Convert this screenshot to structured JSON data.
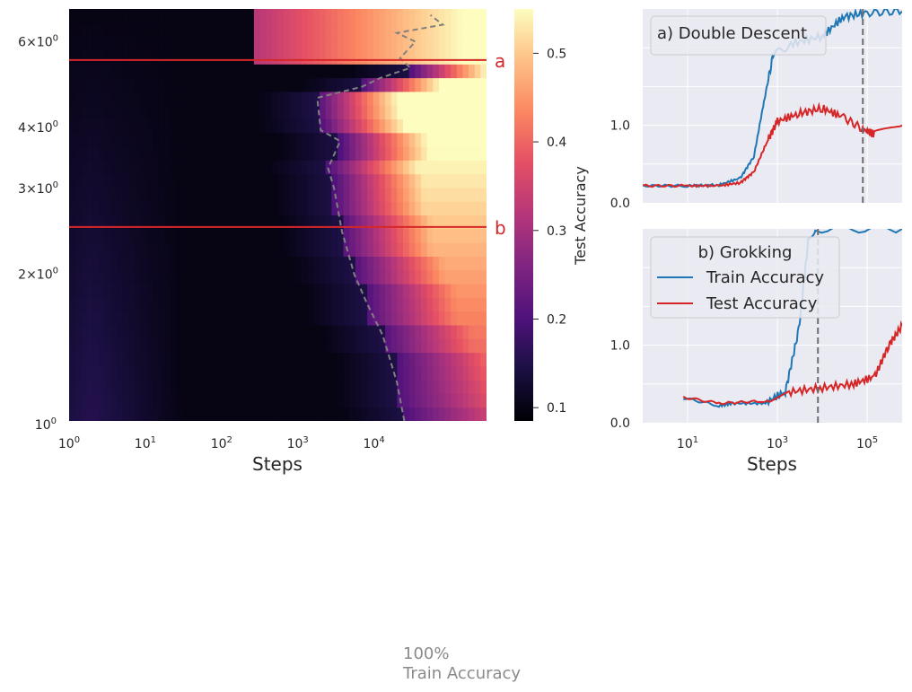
{
  "chart_data": [
    {
      "type": "heatmap",
      "xlabel": "Steps",
      "ylabel": "",
      "x_scale": "log",
      "y_scale": "log",
      "x_ticks": [
        "10^0",
        "10^1",
        "10^2",
        "10^3",
        "10^4"
      ],
      "y_ticks": [
        "10^0",
        "2×10^0",
        "3×10^0",
        "4×10^0",
        "6×10^0"
      ],
      "xlim": [
        1,
        300000
      ],
      "ylim": [
        1,
        7
      ],
      "colorbar": {
        "label": "Test Accuracy",
        "ticks": [
          "0.1",
          "0.2",
          "0.3",
          "0.4",
          "0.5"
        ],
        "range": [
          0.085,
          0.55
        ],
        "colormap": "magma"
      },
      "hlines": [
        {
          "label": "a",
          "y": 5.5,
          "color": "#d62728"
        },
        {
          "label": "b",
          "y": 2.5,
          "color": "#d62728"
        }
      ],
      "boundary_curve": {
        "style": "dashed",
        "color": "#808080",
        "points": [
          [
            25000,
            1.0
          ],
          [
            20000,
            1.2
          ],
          [
            13000,
            1.5
          ],
          [
            8000,
            1.75
          ],
          [
            5500,
            2.0
          ],
          [
            3800,
            2.45
          ],
          [
            3000,
            3.0
          ],
          [
            2500,
            3.3
          ],
          [
            3600,
            3.75
          ],
          [
            2000,
            3.95
          ],
          [
            1800,
            4.6
          ],
          [
            7000,
            4.85
          ],
          [
            12000,
            5.05
          ],
          [
            30000,
            5.3
          ],
          [
            22000,
            5.55
          ],
          [
            35000,
            6.0
          ],
          [
            20000,
            6.25
          ],
          [
            80000,
            6.5
          ],
          [
            55000,
            6.8
          ]
        ]
      }
    },
    {
      "type": "line",
      "title": "a) Double Descent",
      "x_scale": "log",
      "xlim": [
        1,
        600000
      ],
      "y_ticks": [
        "0.0",
        "1.0"
      ],
      "ylim": [
        0,
        2.5
      ],
      "series": [
        {
          "name": "Train Accuracy",
          "color": "#1f77b4",
          "points": [
            [
              1,
              0.22
            ],
            [
              10,
              0.22
            ],
            [
              50,
              0.23
            ],
            [
              150,
              0.32
            ],
            [
              300,
              0.6
            ],
            [
              500,
              1.3
            ],
            [
              800,
              1.9
            ],
            [
              2000,
              2.05
            ],
            [
              10000,
              2.15
            ],
            [
              30000,
              2.4
            ],
            [
              100000,
              2.45
            ],
            [
              600000,
              2.47
            ]
          ]
        },
        {
          "name": "Test Accuracy",
          "color": "#d62728",
          "points": [
            [
              1,
              0.22
            ],
            [
              10,
              0.22
            ],
            [
              50,
              0.22
            ],
            [
              150,
              0.26
            ],
            [
              300,
              0.4
            ],
            [
              600,
              0.8
            ],
            [
              1000,
              1.05
            ],
            [
              3000,
              1.15
            ],
            [
              10000,
              1.22
            ],
            [
              30000,
              1.1
            ],
            [
              80000,
              0.95
            ],
            [
              150000,
              0.88
            ],
            [
              600000,
              1.0
            ]
          ]
        }
      ],
      "vline": {
        "x": 80000,
        "style": "dashed"
      }
    },
    {
      "type": "line",
      "title": "b) Grokking",
      "xlabel": "Steps",
      "x_scale": "log",
      "x_ticks": [
        "10^1",
        "10^3",
        "10^5"
      ],
      "xlim": [
        1,
        600000
      ],
      "y_ticks": [
        "0.0",
        "1.0"
      ],
      "ylim": [
        0,
        2.5
      ],
      "legend": {
        "placement": "upper-left",
        "entries": [
          "Train Accuracy",
          "Test Accuracy"
        ]
      },
      "series": [
        {
          "name": "Train Accuracy",
          "color": "#1f77b4",
          "points": [
            [
              8,
              0.32
            ],
            [
              50,
              0.22
            ],
            [
              100,
              0.25
            ],
            [
              500,
              0.25
            ],
            [
              1500,
              0.4
            ],
            [
              3000,
              1.2
            ],
            [
              5000,
              2.4
            ],
            [
              7000,
              2.5
            ],
            [
              600000,
              2.5
            ]
          ]
        },
        {
          "name": "Test Accuracy",
          "color": "#d62728",
          "points": [
            [
              8,
              0.33
            ],
            [
              50,
              0.25
            ],
            [
              500,
              0.28
            ],
            [
              2000,
              0.4
            ],
            [
              10000,
              0.45
            ],
            [
              50000,
              0.5
            ],
            [
              150000,
              0.6
            ],
            [
              300000,
              1.0
            ],
            [
              600000,
              1.25
            ]
          ]
        }
      ],
      "vline": {
        "x": 8000,
        "style": "dashed"
      }
    }
  ],
  "footer": {
    "line1": "100%",
    "line2": "Train Accuracy"
  }
}
